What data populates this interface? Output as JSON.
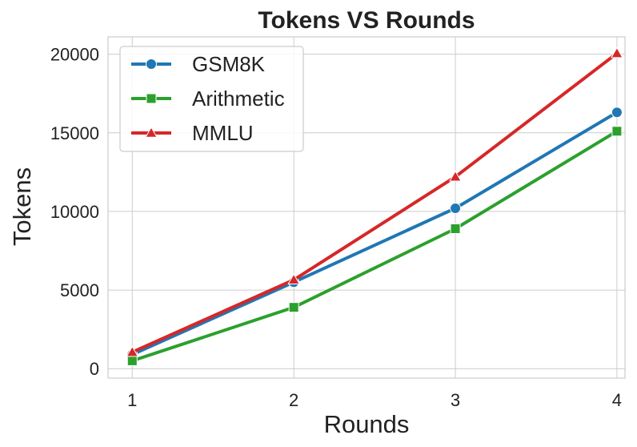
{
  "chart_data": {
    "type": "line",
    "title": "Tokens VS Rounds",
    "xlabel": "Rounds",
    "ylabel": "Tokens",
    "x": [
      1,
      2,
      3,
      4
    ],
    "xlim": [
      0.85,
      4.05
    ],
    "ylim": [
      -600,
      21100
    ],
    "xticks": [
      "1",
      "2",
      "3",
      "4"
    ],
    "yticks": [
      0,
      5000,
      10000,
      15000,
      20000
    ],
    "ytick_labels": [
      "0",
      "5000",
      "10000",
      "15000",
      "20000"
    ],
    "grid": true,
    "legend_position": "top-left",
    "series": [
      {
        "name": "GSM8K",
        "values": [
          900,
          5500,
          10200,
          16300
        ],
        "color": "#1f77b4",
        "marker": "circle"
      },
      {
        "name": "Arithmetic",
        "values": [
          500,
          3900,
          8900,
          15100
        ],
        "color": "#2ca02c",
        "marker": "square"
      },
      {
        "name": "MMLU",
        "values": [
          1050,
          5650,
          12200,
          20050
        ],
        "color": "#d62728",
        "marker": "triangle"
      }
    ]
  }
}
